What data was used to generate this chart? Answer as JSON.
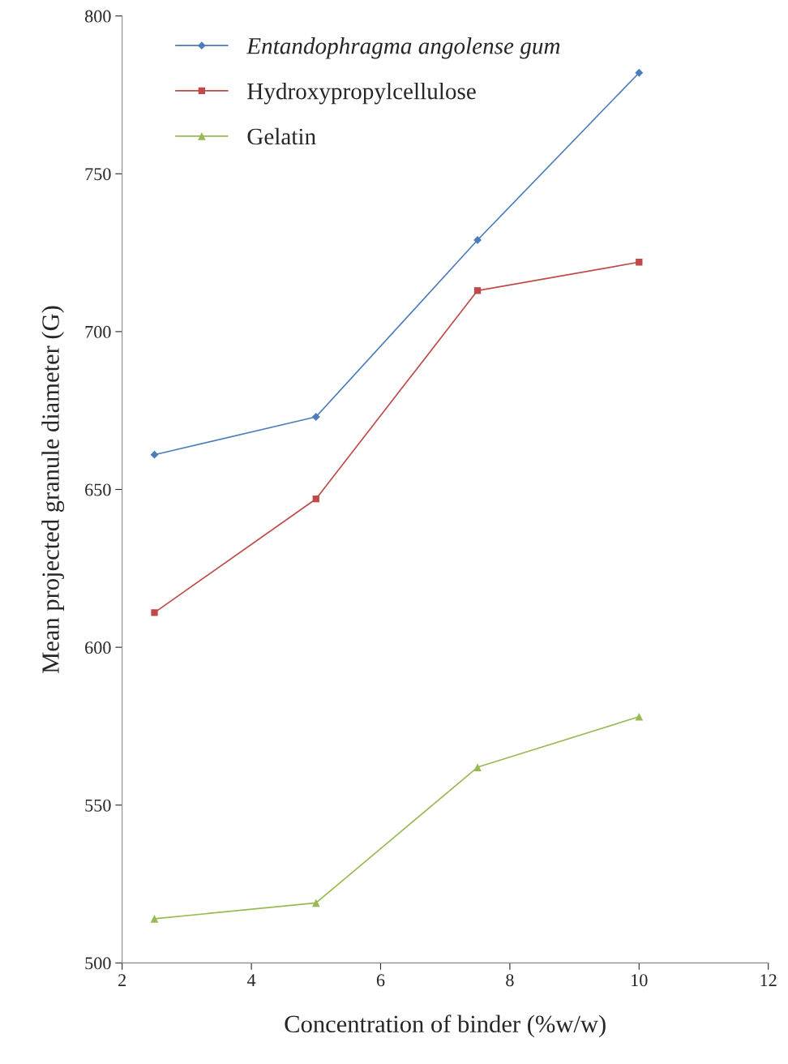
{
  "chart_data": {
    "type": "line",
    "xlabel": "Concentration of binder (%w/w)",
    "ylabel": "Mean projected granule diameter (G)",
    "x": [
      2.5,
      5,
      7.5,
      10
    ],
    "series": [
      {
        "name": "Entandophragma angolense gum",
        "color": "#4a7ebb",
        "marker": "diamond",
        "values": [
          661,
          673,
          729,
          782
        ]
      },
      {
        "name": "Hydroxypropylcellulose",
        "color": "#be4b48",
        "marker": "square",
        "values": [
          611,
          647,
          713,
          722
        ]
      },
      {
        "name": "Gelatin",
        "color": "#98b954",
        "marker": "triangle",
        "values": [
          514,
          519,
          562,
          578
        ]
      }
    ],
    "xlim": [
      2,
      12
    ],
    "xticks": [
      2,
      4,
      6,
      8,
      10,
      12
    ],
    "ylim": [
      500,
      800
    ],
    "yticks": [
      500,
      550,
      600,
      650,
      700,
      750,
      800
    ],
    "grid": false,
    "legend": "top left",
    "line_style": "solid"
  }
}
